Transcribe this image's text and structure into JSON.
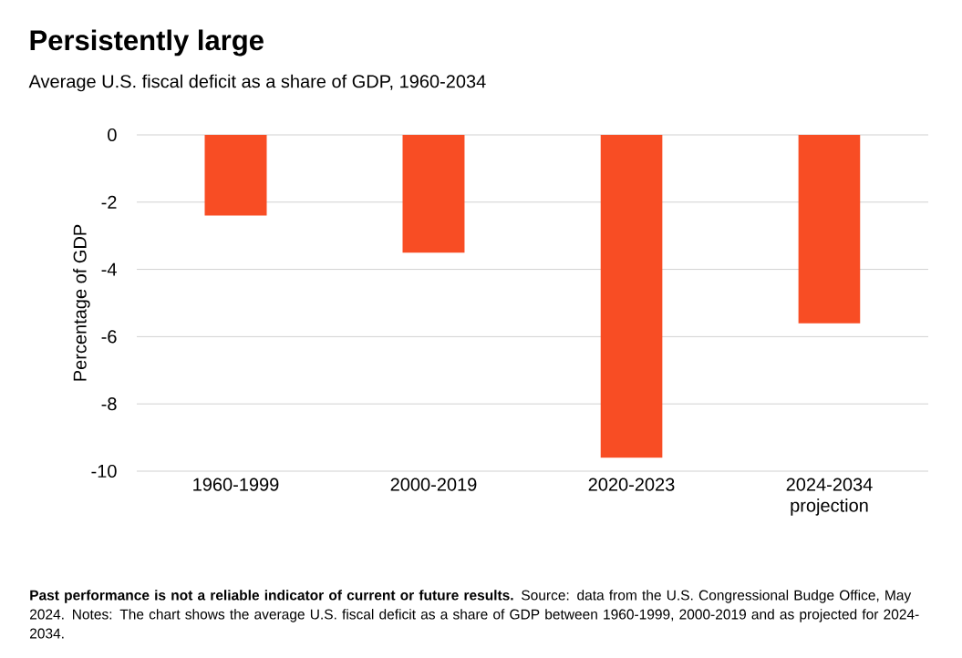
{
  "chart_data": {
    "type": "bar",
    "title": "Persistently large",
    "subtitle": "Average U.S. fiscal deficit as a share of GDP, 1960-2034",
    "ylabel": "Percentage of GDP",
    "categories": [
      "1960-1999",
      "2000-2019",
      "2020-2023",
      "2024-2034 projection"
    ],
    "values": [
      -2.4,
      -3.5,
      -9.6,
      -5.6
    ],
    "colors": [
      "#f84d24",
      "#f84d24",
      "#f84d24",
      "#f84d24"
    ],
    "ylim": [
      -10,
      0
    ],
    "yticks": [
      0,
      -2,
      -4,
      -6,
      -8,
      -10
    ],
    "grid": "y",
    "annotations": [
      "**Past performance is not a reliable indicator of current or future results.** Source: data from the U.S. Congressional Budge Office, May 2024. Notes: The chart shows the average U.S. fiscal deficit as a share of GDP between 1960-1999, 2000-2019 and as projected for 2024-2034."
    ]
  }
}
